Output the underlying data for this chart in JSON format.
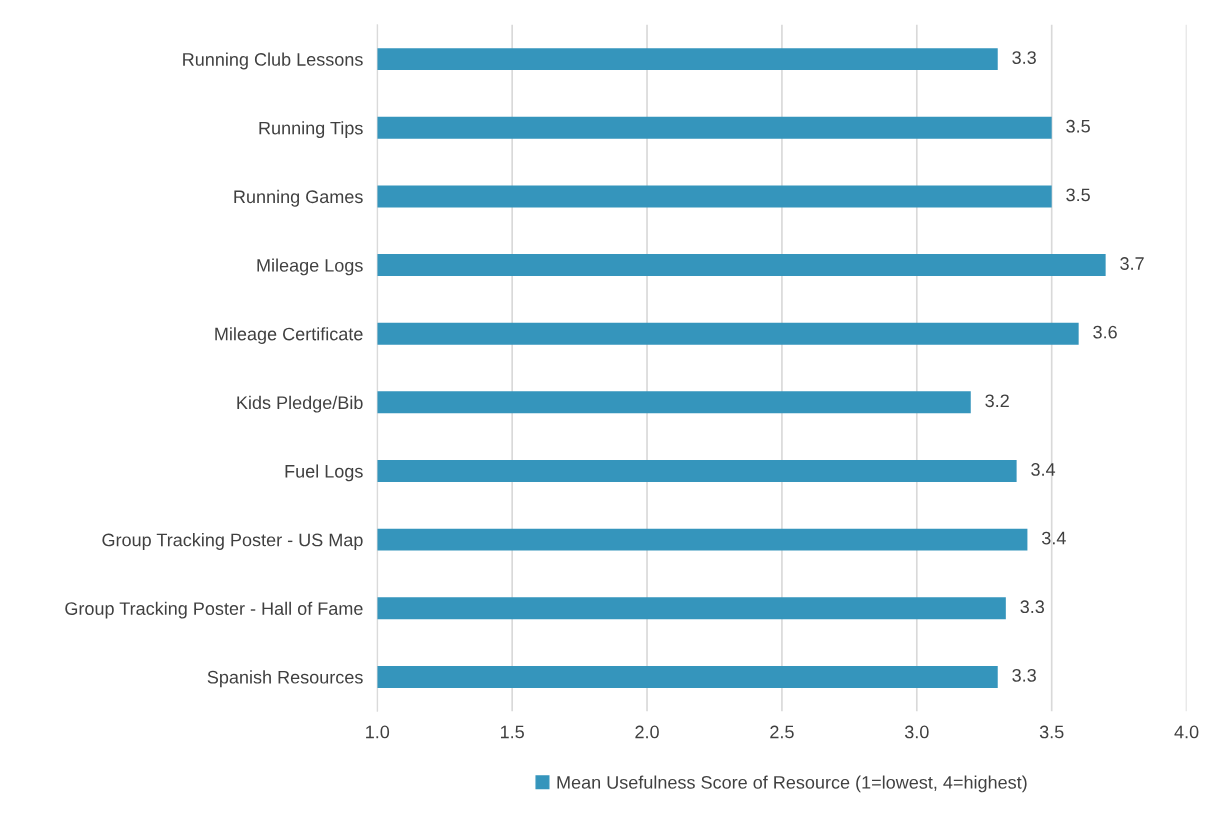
{
  "chart_data": {
    "type": "bar",
    "orientation": "horizontal",
    "categories": [
      "Running Club Lessons",
      "Running Tips",
      "Running Games",
      "Mileage Logs",
      "Mileage Certificate",
      "Kids Pledge/Bib",
      "Fuel Logs",
      "Group Tracking Poster - US Map",
      "Group Tracking Poster - Hall of Fame",
      "Spanish Resources"
    ],
    "series": [
      {
        "name": "Mean Usefulness Score of Resource (1=lowest, 4=highest)",
        "color": "#3595bc",
        "values": [
          3.3,
          3.5,
          3.5,
          3.7,
          3.6,
          3.2,
          3.37,
          3.41,
          3.33,
          3.3
        ],
        "value_labels": [
          "3.3",
          "3.5",
          "3.5",
          "3.7",
          "3.6",
          "3.2",
          "3.4",
          "3.4",
          "3.3",
          "3.3"
        ]
      }
    ],
    "xlim": [
      1.0,
      4.0
    ],
    "xticks": [
      {
        "value": 1.0,
        "label": "1.0"
      },
      {
        "value": 1.5,
        "label": "1.5"
      },
      {
        "value": 2.0,
        "label": "2.0"
      },
      {
        "value": 2.5,
        "label": "2.5"
      },
      {
        "value": 3.0,
        "label": "3.0"
      },
      {
        "value": 3.5,
        "label": "3.5"
      },
      {
        "value": 4.0,
        "label": "4.0"
      }
    ],
    "grid": "x",
    "legend": "bottom"
  }
}
